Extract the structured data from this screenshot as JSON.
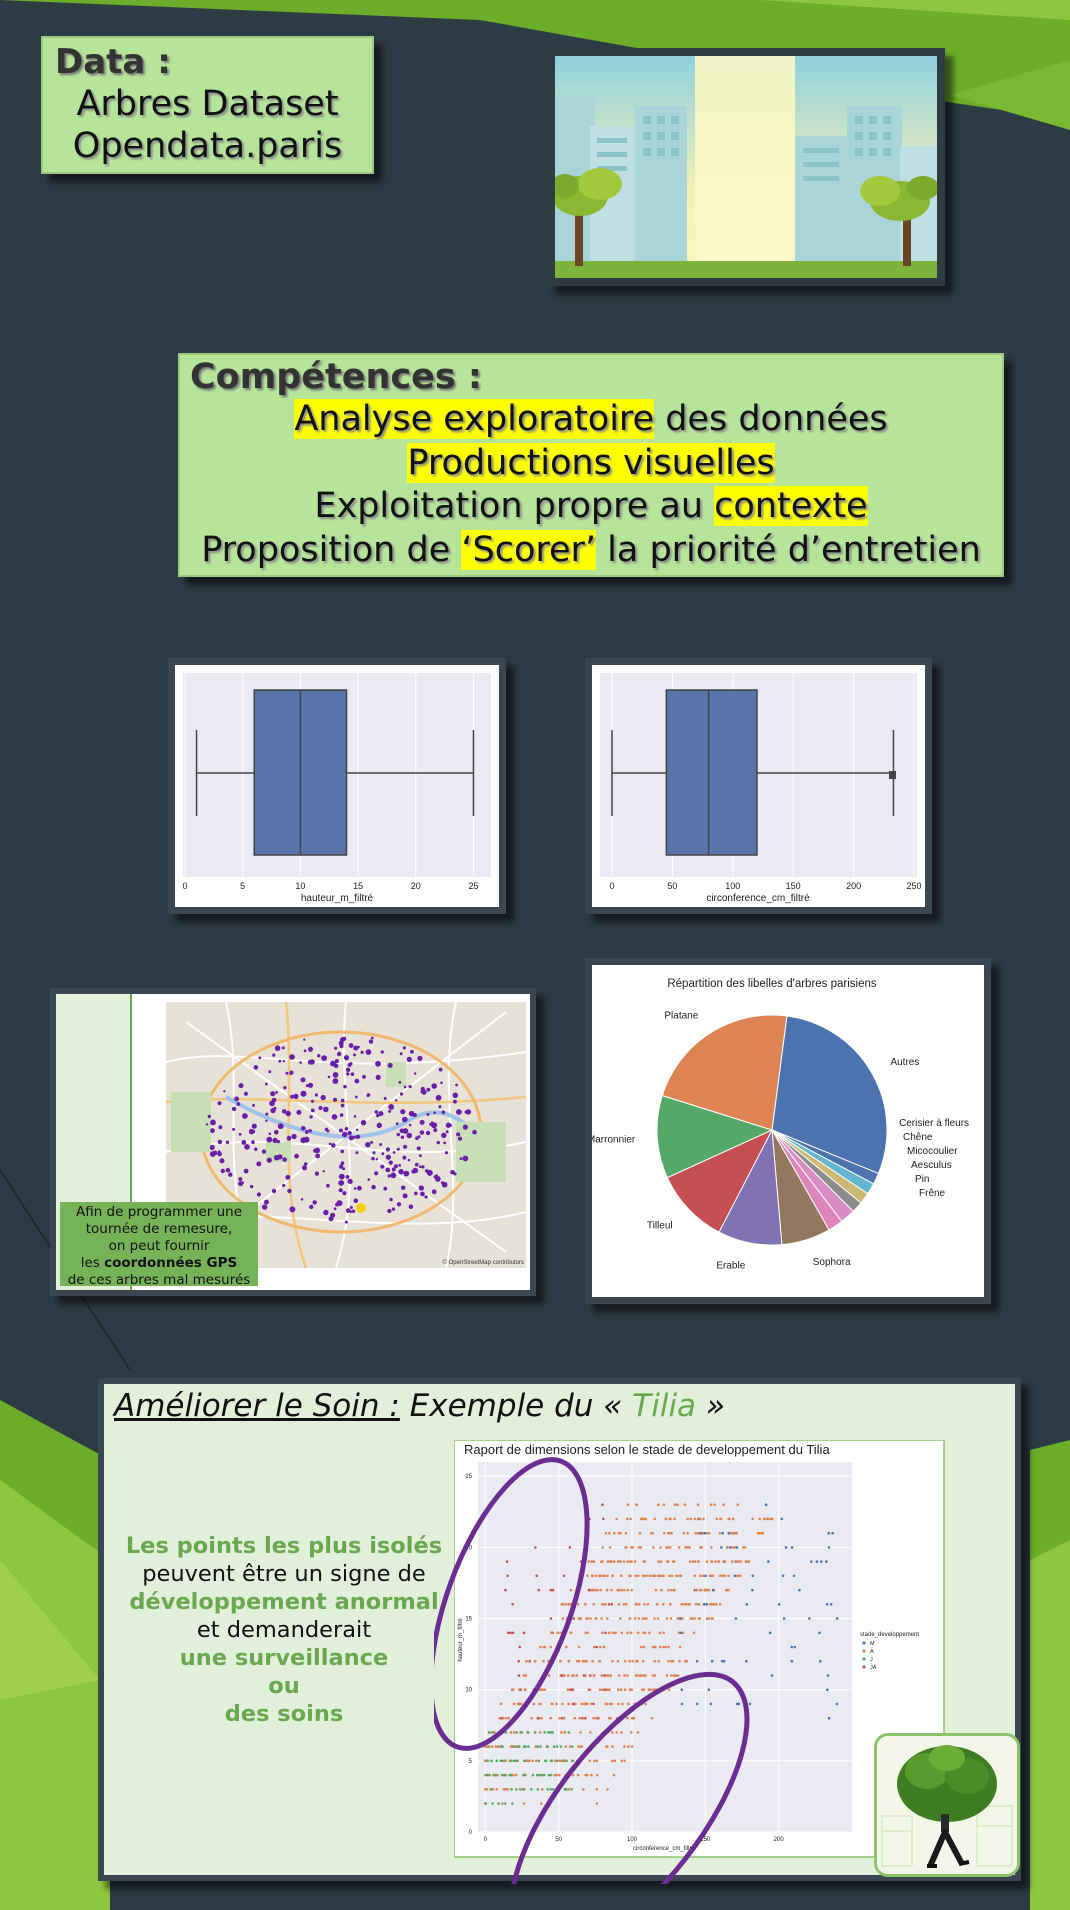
{
  "data_box": {
    "heading": "Data :",
    "line1": "Arbres Dataset",
    "line2": "Opendata.paris"
  },
  "competences": {
    "heading": "Compétences :",
    "line1_hl": "Analyse exploratoire",
    "line1_rest": " des données",
    "line2_hl": "Productions visuelles",
    "line3_start": "Exploitation propre au ",
    "line3_hl": "contexte",
    "line4_start": "Proposition de ",
    "line4_hl": "‘Scorer’",
    "line4_rest": " la priorité d’entretien"
  },
  "boxplot_height": {
    "xlabel": "hauteur_m_filtré",
    "ticks": [
      "0",
      "5",
      "10",
      "15",
      "20",
      "25"
    ]
  },
  "boxplot_circ": {
    "xlabel": "circonference_cm_filtré",
    "ticks": [
      "0",
      "50",
      "100",
      "150",
      "200",
      "250"
    ]
  },
  "map_panel": {
    "note_l1": "Afin de programmer une",
    "note_l2": "tournée de remesure,",
    "note_l3": "on peut fournir",
    "note_l4a": "les ",
    "note_l4b": "coordonnées GPS",
    "note_l5": "de ces arbres mal mesurés",
    "attribution": "© OpenStreetMap contributors"
  },
  "pie": {
    "title": "Répartition des libelles d'arbres parisiens"
  },
  "ameliorer": {
    "title_u": "Améliorer le Soin :",
    "title_mid": " Exemple du « ",
    "title_g": "Tilia",
    "title_end": " »",
    "t1": "Les points les plus isolés",
    "t2": "peuvent être un signe de",
    "t3": "développement anormal",
    "t4": "et demanderait",
    "t5": "une surveillance",
    "t6": "ou",
    "t7": "des soins"
  },
  "scatter": {
    "title": "Raport de dimensions selon le stade de developpement du Tilia",
    "xlabel": "circonference_cm_filtré",
    "ylabel": "hauteur_m_filtré",
    "xticks": [
      "0",
      "50",
      "100",
      "150",
      "200"
    ],
    "yticks": [
      "0",
      "5",
      "10",
      "15",
      "20",
      "25"
    ],
    "legend_title": "stade_developpement",
    "legend": [
      "M",
      "A",
      "J",
      "JA"
    ]
  },
  "chart_data": [
    {
      "type": "box",
      "xlabel": "hauteur_m_filtré",
      "xlim": [
        0,
        26
      ],
      "whisker_low": 1,
      "q1": 6,
      "median": 10,
      "q3": 14,
      "whisker_high": 25
    },
    {
      "type": "box",
      "xlabel": "circonference_cm_filtré",
      "xlim": [
        0,
        250
      ],
      "whisker_low": 0,
      "q1": 45,
      "median": 80,
      "q3": 120,
      "whisker_high": 233
    },
    {
      "type": "pie",
      "title": "Répartition des libelles d'arbres parisiens",
      "slices": [
        {
          "label": "Autres",
          "value": 27.5,
          "color": "#4c72b0"
        },
        {
          "label": "Cerisier à fleurs",
          "value": 1.5,
          "color": "#4c72b0"
        },
        {
          "label": "Chêne",
          "value": 1.5,
          "color": "#64b5cd"
        },
        {
          "label": "Micocoulier",
          "value": 1.5,
          "color": "#ccb974"
        },
        {
          "label": "Aesculus",
          "value": 1.5,
          "color": "#8c8c8c"
        },
        {
          "label": "Pin",
          "value": 2,
          "color": "#da8bc3"
        },
        {
          "label": "Frêne",
          "value": 2,
          "color": "#dd84bb"
        },
        {
          "label": "Sophora",
          "value": 6.5,
          "color": "#937860"
        },
        {
          "label": "Erable",
          "value": 8.5,
          "color": "#8172b3"
        },
        {
          "label": "Tilleul",
          "value": 10,
          "color": "#c44e52"
        },
        {
          "label": "Marronnier",
          "value": 11,
          "color": "#55a868"
        },
        {
          "label": "Platane",
          "value": 21,
          "color": "#dd8452"
        }
      ]
    },
    {
      "type": "scatter",
      "title": "Raport de dimensions selon le stade de developpement du Tilia",
      "xlabel": "circonference_cm_filtré",
      "ylabel": "hauteur_m_filtré",
      "xlim": [
        -5,
        250
      ],
      "ylim": [
        0,
        26
      ],
      "series": [
        {
          "name": "M",
          "color": "#4c72b0"
        },
        {
          "name": "A",
          "color": "#dd8452"
        },
        {
          "name": "J",
          "color": "#55a868"
        },
        {
          "name": "JA",
          "color": "#c44e52"
        }
      ]
    }
  ]
}
